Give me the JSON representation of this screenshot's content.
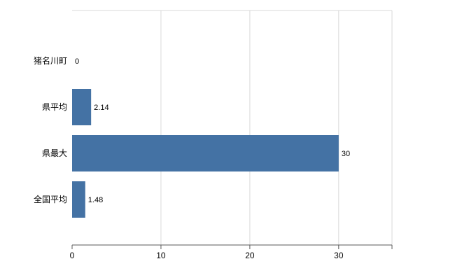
{
  "chart_data": {
    "type": "bar",
    "orientation": "horizontal",
    "title": "",
    "categories": [
      "猪名川町",
      "県平均",
      "県最大",
      "全国平均"
    ],
    "values": [
      0,
      2.14,
      30,
      1.48
    ],
    "value_labels": [
      "0",
      "2.14",
      "30",
      "1.48"
    ],
    "x_ticks": [
      0,
      10,
      20,
      30
    ],
    "x_tick_labels": [
      "0",
      "10",
      "20",
      "30"
    ],
    "xlim": [
      0,
      36
    ],
    "xlabel": "",
    "ylabel": "",
    "legend": "none",
    "grid": "vertical",
    "colors": {
      "bar": "#4472a4",
      "gridline": "#d9d9d9",
      "plot_border": "#d9d9d9",
      "axis": "#595959",
      "tick": "#595959",
      "category_label": "#000000",
      "value_label": "#000000",
      "tick_label": "#000000"
    }
  }
}
